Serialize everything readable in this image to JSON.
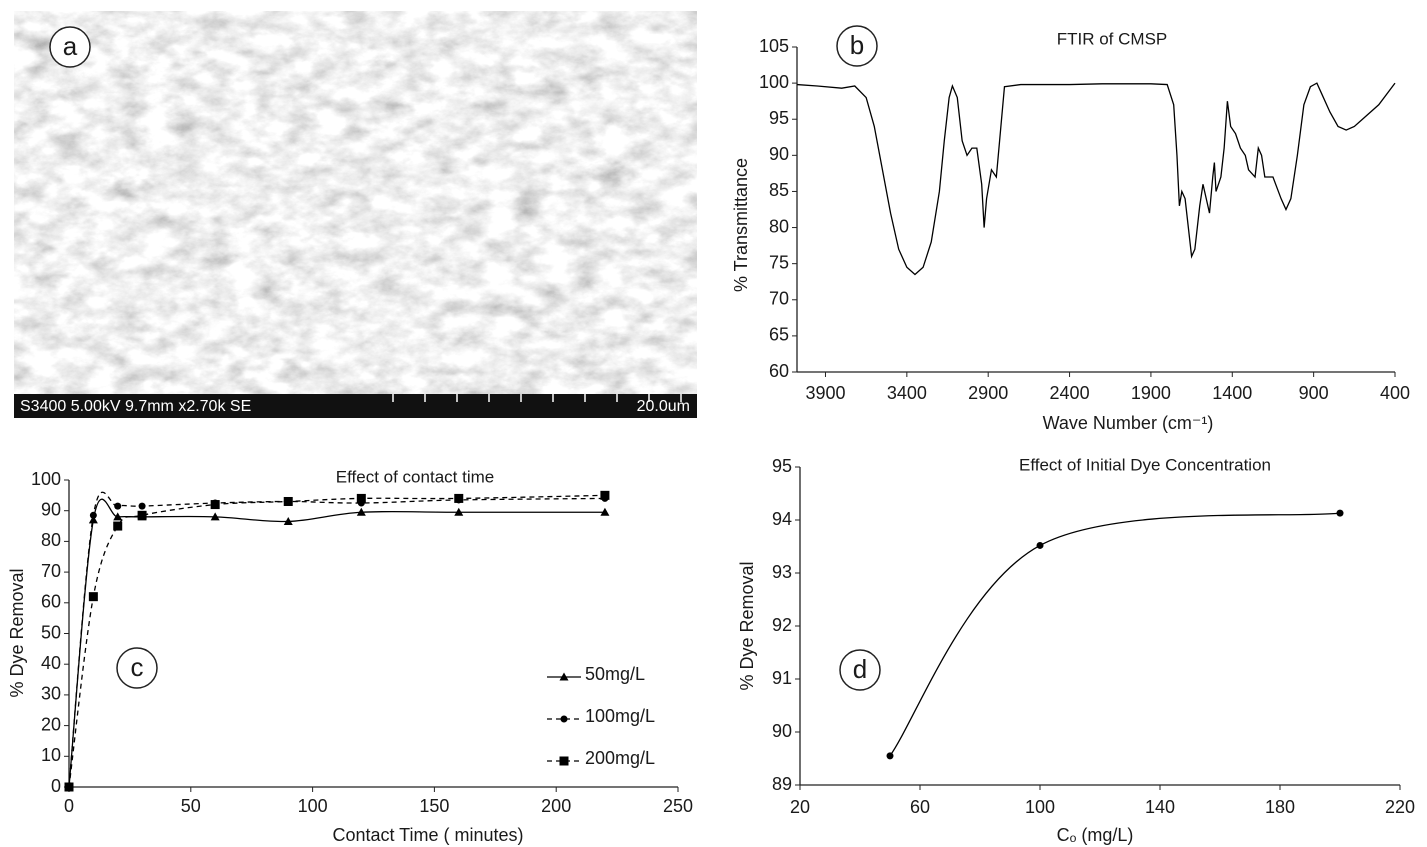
{
  "chart_data": [
    {
      "type": "image",
      "panel_label": "a",
      "caption": "S3400 5.00kV 9.7mm x2.70k SE",
      "scale_label": "20.0um"
    },
    {
      "type": "line",
      "panel_label": "b",
      "title": "FTIR of CMSP",
      "x_label": "Wave Number (cm⁻¹)",
      "y_label": "% Transmittance",
      "xlim": [
        4075,
        400
      ],
      "xticks": [
        3900,
        3400,
        2900,
        2400,
        1900,
        1400,
        900,
        400
      ],
      "ylim": [
        60,
        105
      ],
      "yticks": [
        60,
        65,
        70,
        75,
        80,
        85,
        90,
        95,
        100,
        105
      ],
      "x": [
        4075,
        3950,
        3800,
        3720,
        3650,
        3600,
        3550,
        3500,
        3450,
        3400,
        3350,
        3300,
        3250,
        3200,
        3170,
        3140,
        3120,
        3090,
        3060,
        3030,
        3000,
        2970,
        2940,
        2925,
        2910,
        2880,
        2850,
        2830,
        2800,
        2700,
        2400,
        2200,
        1900,
        1800,
        1760,
        1740,
        1725,
        1710,
        1690,
        1670,
        1650,
        1630,
        1600,
        1580,
        1560,
        1540,
        1520,
        1510,
        1500,
        1470,
        1450,
        1430,
        1410,
        1380,
        1350,
        1320,
        1300,
        1260,
        1240,
        1220,
        1200,
        1150,
        1100,
        1070,
        1040,
        1000,
        960,
        920,
        880,
        850,
        800,
        750,
        700,
        650,
        600,
        500,
        400
      ],
      "series": [
        {
          "color": "#000000",
          "values": [
            99.8,
            99.6,
            99.3,
            99.6,
            98,
            94,
            88,
            82,
            77,
            74.5,
            73.5,
            74.5,
            78,
            85,
            92,
            98,
            99.6,
            98,
            92,
            90,
            91,
            91,
            86,
            80,
            84,
            88,
            87,
            92,
            99.5,
            99.8,
            99.8,
            99.9,
            99.9,
            99.8,
            97,
            90,
            83,
            85,
            84,
            80,
            76,
            77,
            83,
            86,
            84,
            82,
            87,
            89,
            85,
            87,
            91,
            97.5,
            94,
            93,
            91,
            90,
            88,
            87,
            91,
            90,
            87,
            87,
            84,
            82.5,
            84,
            90,
            97,
            99.5,
            100,
            98.5,
            96,
            94,
            93.5,
            94,
            95,
            97,
            100
          ]
        }
      ]
    },
    {
      "type": "line",
      "panel_label": "c",
      "title": "Effect of contact time",
      "x_label": "Contact Time ( minutes)",
      "y_label": "% Dye Removal",
      "smooth": true,
      "xlim": [
        0,
        250
      ],
      "xticks": [
        0,
        50,
        100,
        150,
        200,
        250
      ],
      "ylim": [
        0,
        100
      ],
      "yticks": [
        0,
        10,
        20,
        30,
        40,
        50,
        60,
        70,
        80,
        90,
        100
      ],
      "x": [
        0,
        10,
        20,
        30,
        60,
        90,
        120,
        160,
        220
      ],
      "series": [
        {
          "name": "50mg/L",
          "color": "#000000",
          "line_style": "solid",
          "marker": "triangle",
          "values": [
            0,
            87,
            88,
            88,
            88,
            86.5,
            89.5,
            89.5,
            89.5
          ]
        },
        {
          "name": "100mg/L",
          "color": "#000000",
          "line_style": "dashed",
          "marker": "circle",
          "values": [
            0,
            88.5,
            91.5,
            91.5,
            92.5,
            93,
            92.5,
            93.5,
            94
          ]
        },
        {
          "name": "200mg/L",
          "color": "#000000",
          "line_style": "dashed",
          "marker": "square",
          "values": [
            0,
            62,
            85,
            88.5,
            92,
            93,
            94,
            94,
            95
          ]
        }
      ]
    },
    {
      "type": "line",
      "panel_label": "d",
      "title": "Effect of Initial Dye Concentration",
      "x_label": "Cₒ (mg/L)",
      "y_label": "% Dye Removal",
      "smooth": true,
      "xlim": [
        20,
        220
      ],
      "xticks": [
        20,
        60,
        100,
        140,
        180,
        220
      ],
      "ylim": [
        89,
        95
      ],
      "yticks": [
        89,
        90,
        91,
        92,
        93,
        94,
        95
      ],
      "x": [
        50,
        100,
        200
      ],
      "series": [
        {
          "color": "#000000",
          "line_style": "solid",
          "marker": "circle",
          "values": [
            89.55,
            93.52,
            94.13
          ]
        }
      ]
    }
  ]
}
